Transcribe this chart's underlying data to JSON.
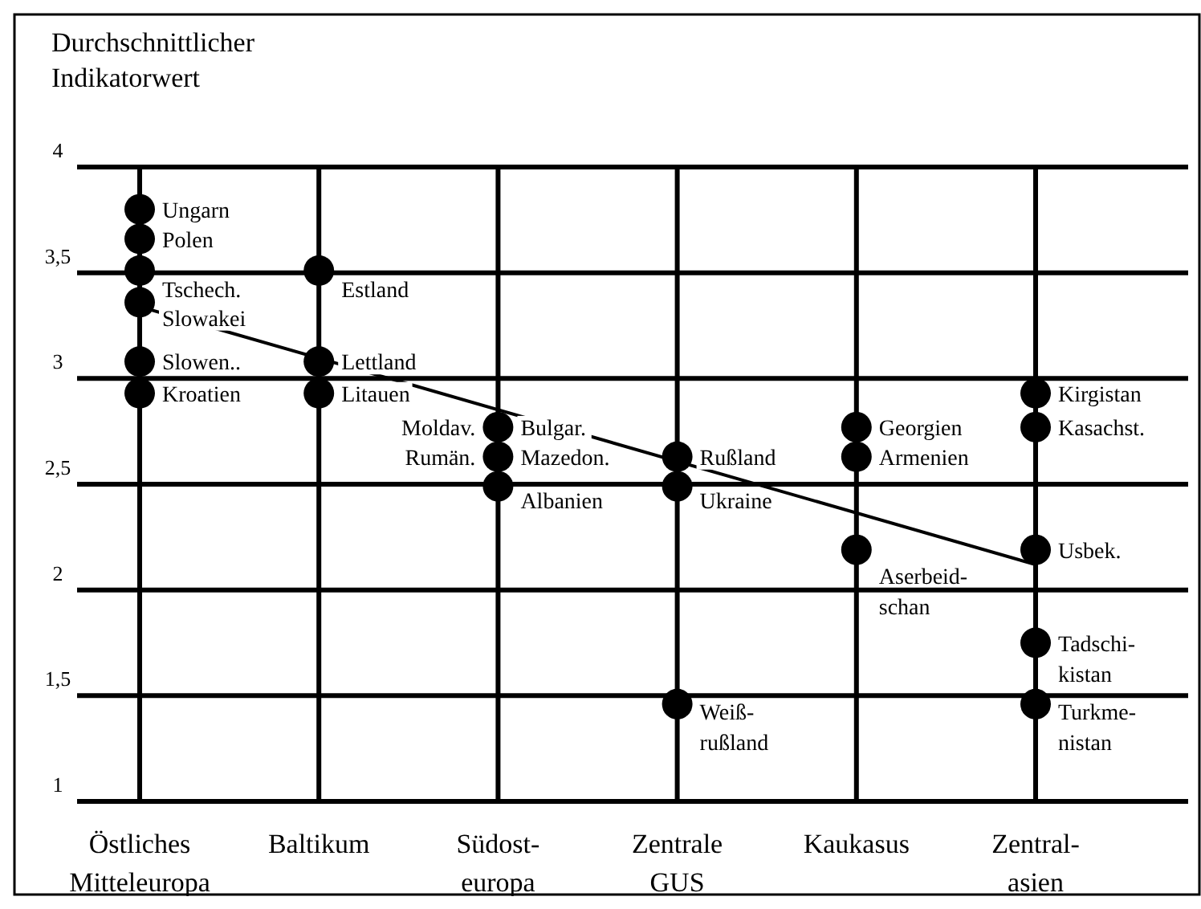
{
  "chart_data": {
    "type": "scatter",
    "ylabel": "Durchschnittlicher\nIndikatorwert",
    "categories": [
      "Östliches\nMitteleuropa",
      "Baltikum",
      "Südost-\neuropa",
      "Zentrale\nGUS",
      "Kaukasus",
      "Zentral-\nasien"
    ],
    "ylim": [
      1,
      4
    ],
    "yticks": [
      1,
      {
        "value": 1.5,
        "label": "1,5"
      },
      2,
      {
        "value": 2.5,
        "label": "2,5"
      },
      3,
      {
        "value": 3.5,
        "label": "3,5"
      },
      4
    ],
    "grid": true,
    "marker": "circle",
    "series": [
      {
        "color": "#000000",
        "x": [
          "Östliches\nMitteleuropa",
          "Östliches\nMitteleuropa",
          "Östliches\nMitteleuropa",
          "Östliches\nMitteleuropa",
          "Östliches\nMitteleuropa",
          "Östliches\nMitteleuropa",
          "Baltikum",
          "Baltikum",
          "Baltikum",
          "Südost-\neuropa",
          "Südost-\neuropa",
          "Südost-\neuropa",
          "Zentrale\nGUS",
          "Zentrale\nGUS",
          "Zentrale\nGUS",
          "Kaukasus",
          "Kaukasus",
          "Kaukasus",
          "Zentral-\nasien",
          "Zentral-\nasien",
          "Zentral-\nasien",
          "Zentral-\nasien",
          "Zentral-\nasien"
        ],
        "values": [
          3.8,
          3.66,
          3.51,
          3.36,
          3.08,
          2.93,
          3.51,
          3.08,
          2.93,
          2.77,
          2.63,
          2.49,
          2.63,
          2.49,
          1.46,
          2.77,
          2.63,
          2.19,
          2.93,
          2.77,
          2.19,
          1.75,
          1.46
        ]
      },
      {
        "type": "line",
        "color": "#000000",
        "marker": "none",
        "x": [
          "Östliches\nMitteleuropa",
          "Zentral-\nasien"
        ],
        "values": [
          3.34,
          2.12
        ]
      }
    ],
    "annotations": [
      {
        "text": "Ungarn",
        "x": "Östliches\nMitteleuropa",
        "y": 3.8
      },
      {
        "text": "Polen",
        "x": "Östliches\nMitteleuropa",
        "y": 3.66
      },
      {
        "text": "Tschech.",
        "x": "Östliches\nMitteleuropa",
        "y": 3.51
      },
      {
        "text": "Slowakei",
        "x": "Östliches\nMitteleuropa",
        "y": 3.36
      },
      {
        "text": "Slowen..",
        "x": "Östliches\nMitteleuropa",
        "y": 3.08
      },
      {
        "text": "Kroatien",
        "x": "Östliches\nMitteleuropa",
        "y": 2.93
      },
      {
        "text": "Estland",
        "x": "Baltikum",
        "y": 3.51
      },
      {
        "text": "Lettland",
        "x": "Baltikum",
        "y": 3.08
      },
      {
        "text": "Litauen",
        "x": "Baltikum",
        "y": 2.93
      },
      {
        "text": "Bulgar.",
        "x": "Südost-\neuropa",
        "y": 2.77
      },
      {
        "text": "Moldav.",
        "x": "Südost-\neuropa",
        "y": 2.77
      },
      {
        "text": "Mazedon.",
        "x": "Südost-\neuropa",
        "y": 2.63
      },
      {
        "text": "Rumän.",
        "x": "Südost-\neuropa",
        "y": 2.63
      },
      {
        "text": "Albanien",
        "x": "Südost-\neuropa",
        "y": 2.49
      },
      {
        "text": "Rußland",
        "x": "Zentrale\nGUS",
        "y": 2.63
      },
      {
        "text": "Ukraine",
        "x": "Zentrale\nGUS",
        "y": 2.49
      },
      {
        "text": "Weiß-\nrußland",
        "x": "Zentrale\nGUS",
        "y": 1.46
      },
      {
        "text": "Georgien",
        "x": "Kaukasus",
        "y": 2.77
      },
      {
        "text": "Armenien",
        "x": "Kaukasus",
        "y": 2.63
      },
      {
        "text": "Aserbeid-\nschan",
        "x": "Kaukasus",
        "y": 2.19
      },
      {
        "text": "Kirgistan",
        "x": "Zentral-\nasien",
        "y": 2.93
      },
      {
        "text": "Kasachst.",
        "x": "Zentral-\nasien",
        "y": 2.77
      },
      {
        "text": "Usbek.",
        "x": "Zentral-\nasien",
        "y": 2.19
      },
      {
        "text": "Tadschi-\nkistan",
        "x": "Zentral-\nasien",
        "y": 1.75
      },
      {
        "text": "Turkme-\nnistan",
        "x": "Zentral-\nasien",
        "y": 1.46
      }
    ]
  }
}
